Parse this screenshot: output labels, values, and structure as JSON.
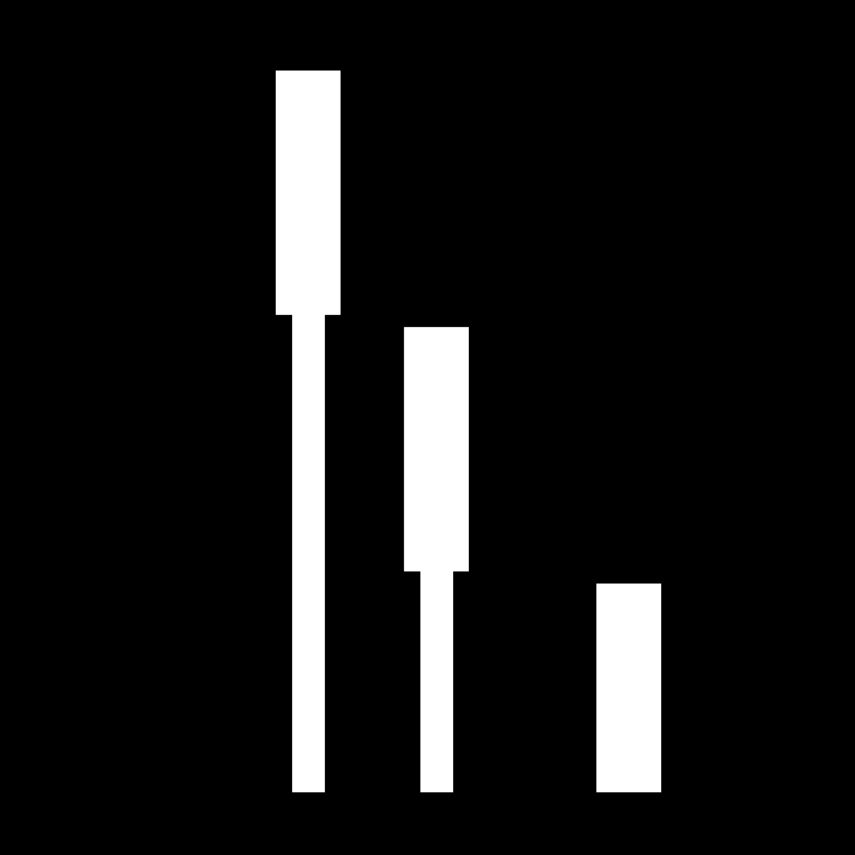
{
  "scene": {
    "background_color": "#000000",
    "shape_color": "#ffffff",
    "figures": [
      {
        "name": "tall-figure",
        "parts": [
          "head-block",
          "stem-bar"
        ]
      },
      {
        "name": "medium-figure",
        "parts": [
          "head-block",
          "stem-bar"
        ]
      },
      {
        "name": "short-figure",
        "parts": [
          "block"
        ]
      }
    ]
  }
}
